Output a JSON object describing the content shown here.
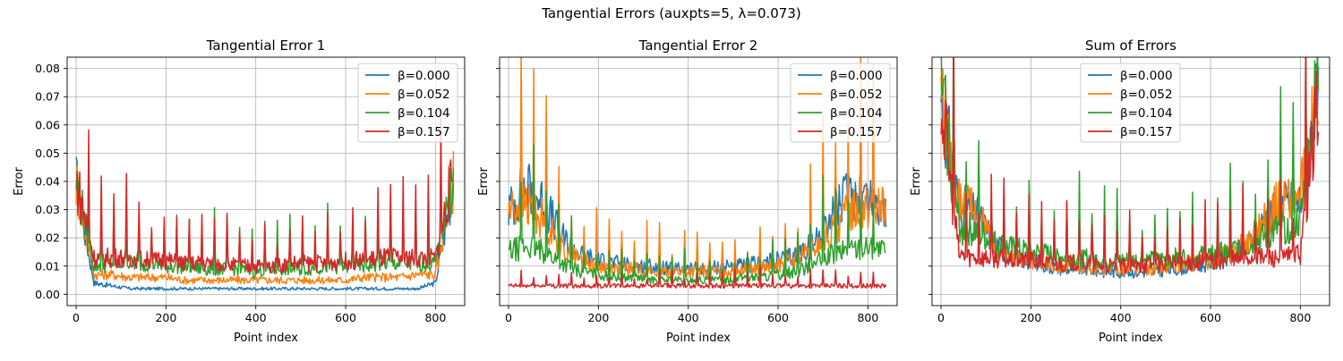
{
  "figure": {
    "title": "Tangential Errors (auxpts=5, λ=0.073)"
  },
  "chart_data": [
    {
      "type": "line",
      "title": "Tangential Error 1",
      "xlabel": "Point index",
      "ylabel": "Error",
      "xlim": [
        -20,
        865
      ],
      "ylim": [
        -0.004,
        0.084
      ],
      "x_ticks": [
        0,
        200,
        400,
        600,
        800
      ],
      "y_ticks": [
        0.0,
        0.01,
        0.02,
        0.03,
        0.04,
        0.05,
        0.06,
        0.07,
        0.08
      ],
      "grid": true,
      "legend": "upper right",
      "x": [
        0,
        40,
        80,
        120,
        160,
        200,
        240,
        280,
        320,
        360,
        400,
        440,
        480,
        520,
        560,
        600,
        640,
        680,
        720,
        760,
        800,
        840
      ],
      "series": [
        {
          "name": "β=0.000",
          "color": "#1f77b4",
          "values": [
            0.04,
            0.004,
            0.003,
            0.002,
            0.002,
            0.002,
            0.002,
            0.002,
            0.002,
            0.002,
            0.002,
            0.002,
            0.002,
            0.002,
            0.002,
            0.002,
            0.002,
            0.002,
            0.002,
            0.002,
            0.004,
            0.04
          ]
        },
        {
          "name": "β=0.052",
          "color": "#ff7f0e",
          "values": [
            0.04,
            0.007,
            0.007,
            0.006,
            0.006,
            0.006,
            0.005,
            0.005,
            0.005,
            0.005,
            0.005,
            0.005,
            0.005,
            0.005,
            0.005,
            0.005,
            0.006,
            0.006,
            0.006,
            0.007,
            0.007,
            0.041
          ]
        },
        {
          "name": "β=0.104",
          "color": "#2ca02c",
          "values": [
            0.04,
            0.01,
            0.011,
            0.011,
            0.011,
            0.01,
            0.01,
            0.009,
            0.009,
            0.009,
            0.008,
            0.009,
            0.009,
            0.009,
            0.01,
            0.01,
            0.01,
            0.011,
            0.011,
            0.011,
            0.011,
            0.042
          ]
        },
        {
          "name": "β=0.157",
          "color": "#d62728",
          "values": [
            0.041,
            0.013,
            0.013,
            0.013,
            0.012,
            0.012,
            0.011,
            0.011,
            0.011,
            0.01,
            0.01,
            0.01,
            0.011,
            0.011,
            0.011,
            0.012,
            0.012,
            0.013,
            0.013,
            0.013,
            0.013,
            0.043
          ]
        }
      ]
    },
    {
      "type": "line",
      "title": "Tangential Error 2",
      "xlabel": "Point index",
      "ylabel": "Error",
      "xlim": [
        -20,
        865
      ],
      "ylim": [
        -0.004,
        0.084
      ],
      "x_ticks": [
        0,
        200,
        400,
        600,
        800
      ],
      "y_ticks": [
        0.0,
        0.01,
        0.02,
        0.03,
        0.04,
        0.05,
        0.06,
        0.07,
        0.08
      ],
      "grid": true,
      "legend": "upper right",
      "x": [
        0,
        40,
        80,
        120,
        160,
        200,
        240,
        280,
        320,
        360,
        400,
        440,
        480,
        520,
        560,
        600,
        640,
        680,
        720,
        760,
        800,
        840
      ],
      "series": [
        {
          "name": "β=0.000",
          "color": "#1f77b4",
          "values": [
            0.03,
            0.038,
            0.032,
            0.02,
            0.014,
            0.012,
            0.011,
            0.01,
            0.01,
            0.009,
            0.009,
            0.009,
            0.01,
            0.01,
            0.011,
            0.012,
            0.014,
            0.018,
            0.028,
            0.036,
            0.035,
            0.03
          ]
        },
        {
          "name": "β=0.052",
          "color": "#ff7f0e",
          "values": [
            0.03,
            0.032,
            0.026,
            0.016,
            0.012,
            0.01,
            0.009,
            0.009,
            0.008,
            0.008,
            0.008,
            0.008,
            0.008,
            0.009,
            0.009,
            0.01,
            0.012,
            0.016,
            0.022,
            0.03,
            0.032,
            0.03
          ]
        },
        {
          "name": "β=0.104",
          "color": "#2ca02c",
          "values": [
            0.015,
            0.017,
            0.015,
            0.011,
            0.008,
            0.007,
            0.006,
            0.006,
            0.005,
            0.005,
            0.005,
            0.005,
            0.005,
            0.006,
            0.006,
            0.007,
            0.008,
            0.011,
            0.014,
            0.016,
            0.017,
            0.015
          ]
        },
        {
          "name": "β=0.157",
          "color": "#d62728",
          "values": [
            0.003,
            0.003,
            0.003,
            0.003,
            0.003,
            0.003,
            0.003,
            0.003,
            0.003,
            0.003,
            0.003,
            0.003,
            0.003,
            0.003,
            0.003,
            0.003,
            0.003,
            0.003,
            0.003,
            0.003,
            0.003,
            0.003
          ]
        }
      ]
    },
    {
      "type": "line",
      "title": "Sum of Errors",
      "xlabel": "Point index",
      "ylabel": "Error",
      "xlim": [
        -20,
        865
      ],
      "ylim": [
        -0.004,
        0.084
      ],
      "x_ticks": [
        0,
        200,
        400,
        600,
        800
      ],
      "y_ticks": [
        0.0,
        0.01,
        0.02,
        0.03,
        0.04,
        0.05,
        0.06,
        0.07,
        0.08
      ],
      "grid": true,
      "legend": "upper center",
      "x": [
        0,
        40,
        80,
        120,
        160,
        200,
        240,
        280,
        320,
        360,
        400,
        440,
        480,
        520,
        560,
        600,
        640,
        680,
        720,
        760,
        800,
        840
      ],
      "series": [
        {
          "name": "β=0.000",
          "color": "#1f77b4",
          "values": [
            0.07,
            0.032,
            0.028,
            0.018,
            0.013,
            0.012,
            0.01,
            0.009,
            0.009,
            0.008,
            0.008,
            0.008,
            0.008,
            0.009,
            0.01,
            0.011,
            0.013,
            0.017,
            0.026,
            0.032,
            0.033,
            0.07
          ]
        },
        {
          "name": "β=0.052",
          "color": "#ff7f0e",
          "values": [
            0.07,
            0.034,
            0.028,
            0.018,
            0.014,
            0.012,
            0.011,
            0.01,
            0.01,
            0.009,
            0.009,
            0.009,
            0.009,
            0.01,
            0.011,
            0.012,
            0.014,
            0.018,
            0.026,
            0.034,
            0.035,
            0.07
          ]
        },
        {
          "name": "β=0.104",
          "color": "#2ca02c",
          "values": [
            0.075,
            0.024,
            0.022,
            0.018,
            0.016,
            0.015,
            0.014,
            0.013,
            0.013,
            0.012,
            0.012,
            0.012,
            0.012,
            0.013,
            0.013,
            0.014,
            0.015,
            0.017,
            0.02,
            0.024,
            0.026,
            0.077
          ]
        },
        {
          "name": "β=0.157",
          "color": "#d62728",
          "values": [
            0.07,
            0.014,
            0.013,
            0.013,
            0.012,
            0.012,
            0.011,
            0.011,
            0.011,
            0.01,
            0.01,
            0.01,
            0.011,
            0.011,
            0.011,
            0.012,
            0.012,
            0.013,
            0.013,
            0.013,
            0.014,
            0.071
          ]
        }
      ]
    }
  ]
}
